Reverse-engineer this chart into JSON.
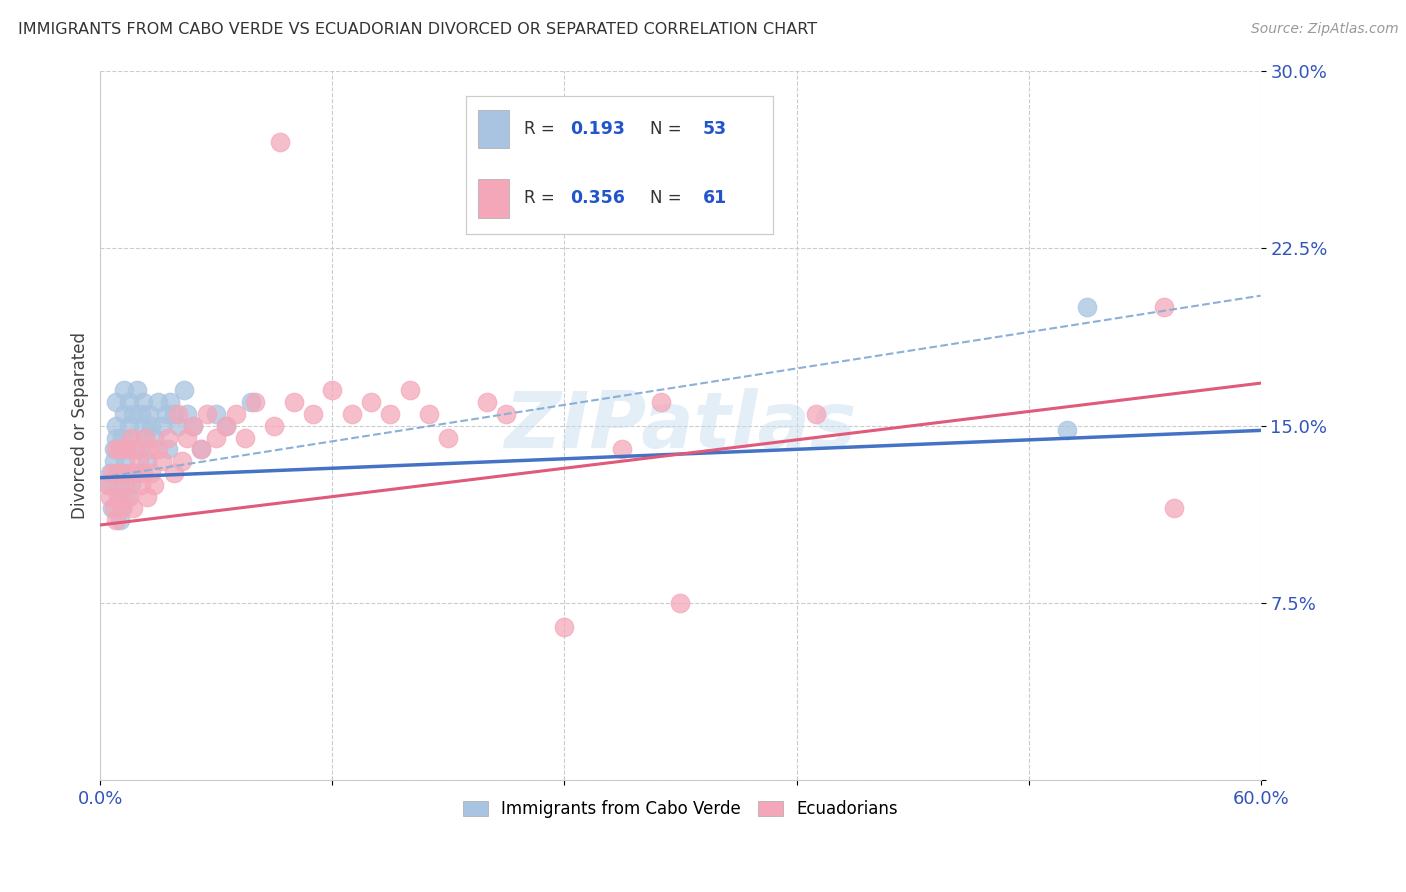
{
  "title": "IMMIGRANTS FROM CABO VERDE VS ECUADORIAN DIVORCED OR SEPARATED CORRELATION CHART",
  "source": "Source: ZipAtlas.com",
  "ylabel": "Divorced or Separated",
  "xlim": [
    0.0,
    0.6
  ],
  "ylim": [
    0.0,
    0.3
  ],
  "blue_R": 0.193,
  "blue_N": 53,
  "pink_R": 0.356,
  "pink_N": 61,
  "blue_color": "#a8c4e0",
  "pink_color": "#f4a7b9",
  "blue_line_color": "#4472c4",
  "pink_line_color": "#e05a7a",
  "blue_dashed_color": "#8ab0d8",
  "watermark": "ZIPatlas",
  "blue_line": [
    0.0,
    0.128,
    0.6,
    0.148
  ],
  "pink_line": [
    0.0,
    0.108,
    0.6,
    0.168
  ],
  "blue_dash_line": [
    0.0,
    0.128,
    0.6,
    0.205
  ],
  "cabo_verde_x": [
    0.004,
    0.005,
    0.006,
    0.007,
    0.007,
    0.008,
    0.008,
    0.008,
    0.009,
    0.009,
    0.01,
    0.01,
    0.01,
    0.011,
    0.011,
    0.011,
    0.012,
    0.012,
    0.013,
    0.014,
    0.014,
    0.015,
    0.015,
    0.016,
    0.016,
    0.017,
    0.018,
    0.019,
    0.02,
    0.021,
    0.022,
    0.022,
    0.023,
    0.024,
    0.025,
    0.026,
    0.028,
    0.03,
    0.032,
    0.034,
    0.035,
    0.036,
    0.038,
    0.04,
    0.043,
    0.045,
    0.048,
    0.052,
    0.06,
    0.065,
    0.078,
    0.5,
    0.51
  ],
  "cabo_verde_y": [
    0.125,
    0.13,
    0.115,
    0.14,
    0.135,
    0.145,
    0.15,
    0.16,
    0.12,
    0.13,
    0.11,
    0.125,
    0.14,
    0.115,
    0.13,
    0.145,
    0.155,
    0.165,
    0.135,
    0.12,
    0.14,
    0.15,
    0.16,
    0.125,
    0.145,
    0.155,
    0.13,
    0.165,
    0.14,
    0.155,
    0.15,
    0.16,
    0.145,
    0.135,
    0.155,
    0.15,
    0.145,
    0.16,
    0.15,
    0.155,
    0.14,
    0.16,
    0.155,
    0.15,
    0.165,
    0.155,
    0.15,
    0.14,
    0.155,
    0.15,
    0.16,
    0.148,
    0.2
  ],
  "ecuadorian_x": [
    0.004,
    0.005,
    0.006,
    0.007,
    0.008,
    0.008,
    0.009,
    0.01,
    0.01,
    0.011,
    0.012,
    0.013,
    0.014,
    0.015,
    0.016,
    0.016,
    0.017,
    0.018,
    0.02,
    0.021,
    0.022,
    0.023,
    0.024,
    0.025,
    0.026,
    0.028,
    0.03,
    0.032,
    0.035,
    0.038,
    0.04,
    0.042,
    0.045,
    0.048,
    0.052,
    0.055,
    0.06,
    0.065,
    0.07,
    0.075,
    0.08,
    0.09,
    0.093,
    0.1,
    0.11,
    0.12,
    0.13,
    0.14,
    0.15,
    0.16,
    0.17,
    0.18,
    0.2,
    0.21,
    0.24,
    0.27,
    0.29,
    0.3,
    0.37,
    0.55,
    0.555
  ],
  "ecuadorian_y": [
    0.125,
    0.12,
    0.13,
    0.115,
    0.14,
    0.11,
    0.13,
    0.12,
    0.14,
    0.115,
    0.13,
    0.125,
    0.14,
    0.12,
    0.13,
    0.145,
    0.115,
    0.14,
    0.135,
    0.125,
    0.13,
    0.145,
    0.12,
    0.14,
    0.13,
    0.125,
    0.14,
    0.135,
    0.145,
    0.13,
    0.155,
    0.135,
    0.145,
    0.15,
    0.14,
    0.155,
    0.145,
    0.15,
    0.155,
    0.145,
    0.16,
    0.15,
    0.27,
    0.16,
    0.155,
    0.165,
    0.155,
    0.16,
    0.155,
    0.165,
    0.155,
    0.145,
    0.16,
    0.155,
    0.065,
    0.14,
    0.16,
    0.075,
    0.155,
    0.2,
    0.115
  ]
}
